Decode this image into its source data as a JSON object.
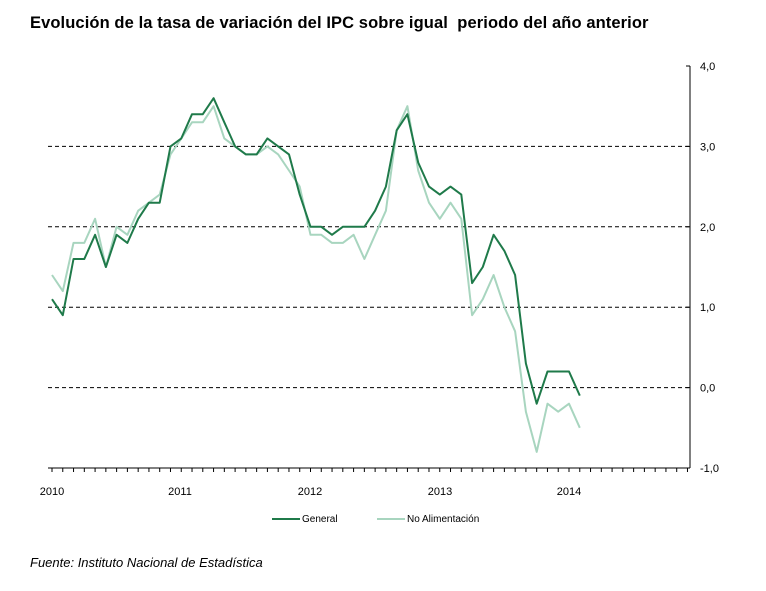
{
  "title": "Evolución de la tasa de variación del IPC sobre igual  periodo del año anterior",
  "source": "Fuente: Instituto Nacional de Estadística",
  "chart_data": {
    "type": "line",
    "title": "Evolución de la tasa de variación del IPC sobre igual  periodo del año anterior",
    "xlabel": "",
    "ylabel": "",
    "ylim": [
      -1.0,
      4.0
    ],
    "y_ticks": [
      "4,0",
      "3,0",
      "2,0",
      "1,0",
      "0,0",
      "-1,0"
    ],
    "x_ticks": [
      "2010",
      "2011",
      "2012",
      "2013",
      "2014"
    ],
    "grid": "horizontal dashed at 0, 1, 2, 3",
    "legend_position": "bottom",
    "x_start": "2010-01",
    "series": [
      {
        "name": "General",
        "color": "#1f7a4a",
        "values": [
          1.1,
          0.9,
          1.6,
          1.6,
          1.9,
          1.5,
          1.9,
          1.8,
          2.1,
          2.3,
          2.3,
          3.0,
          3.1,
          3.4,
          3.4,
          3.6,
          3.3,
          3.0,
          2.9,
          2.9,
          3.1,
          3.0,
          2.9,
          2.4,
          2.0,
          2.0,
          1.9,
          2.0,
          2.0,
          2.0,
          2.2,
          2.5,
          3.2,
          3.4,
          2.8,
          2.5,
          2.4,
          2.5,
          2.4,
          1.3,
          1.5,
          1.9,
          1.7,
          1.4,
          0.3,
          -0.2,
          0.2,
          0.2,
          0.2,
          -0.1
        ]
      },
      {
        "name": "No Alimentación",
        "color": "#a8d5bf",
        "values": [
          1.4,
          1.2,
          1.8,
          1.8,
          2.1,
          1.5,
          2.0,
          1.9,
          2.2,
          2.3,
          2.4,
          2.9,
          3.1,
          3.3,
          3.3,
          3.5,
          3.1,
          3.0,
          2.9,
          2.9,
          3.0,
          2.9,
          2.7,
          2.5,
          1.9,
          1.9,
          1.8,
          1.8,
          1.9,
          1.6,
          1.9,
          2.2,
          3.2,
          3.5,
          2.7,
          2.3,
          2.1,
          2.3,
          2.1,
          0.9,
          1.1,
          1.4,
          1.0,
          0.7,
          -0.3,
          -0.8,
          -0.2,
          -0.3,
          -0.2,
          -0.5
        ]
      }
    ]
  }
}
